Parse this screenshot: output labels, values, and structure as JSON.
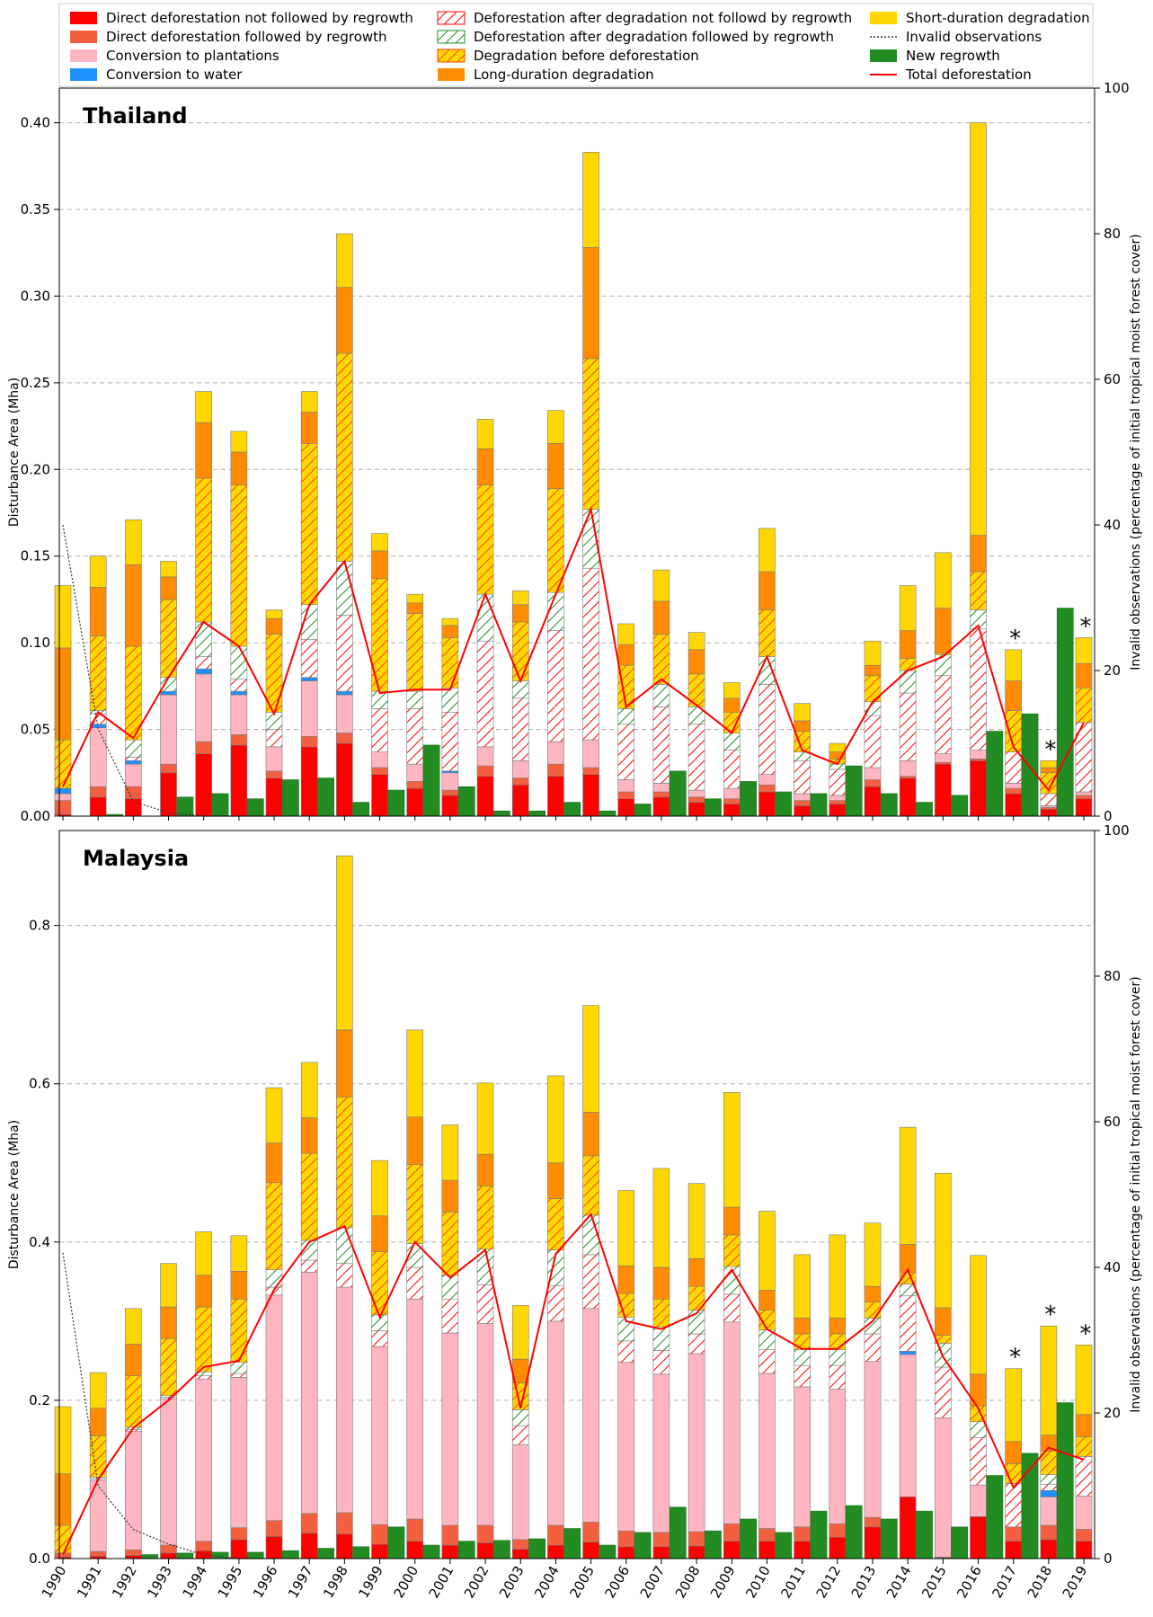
{
  "legend": [
    {
      "key": "dnr",
      "label": "Direct deforestation not followed by regrowth",
      "style": "solid",
      "color": "#ff0000"
    },
    {
      "key": "dr",
      "label": "Direct deforestation followed by regrowth",
      "style": "solid",
      "color": "#f4603f"
    },
    {
      "key": "pl",
      "label": "Conversion to plantations",
      "style": "solid",
      "color": "#ffb6c1"
    },
    {
      "key": "wa",
      "label": "Conversion to water",
      "style": "solid",
      "color": "#1e90ff"
    },
    {
      "key": "adnr",
      "label": "Deforestation after degradation not followd by regrowth",
      "style": "hatch",
      "color": "#ff0000",
      "bg": "#ffffff"
    },
    {
      "key": "adr",
      "label": "Deforestation after degradation followed by regrowth",
      "style": "hatch",
      "color": "#228b22",
      "bg": "#ffffff"
    },
    {
      "key": "dbd",
      "label": "Degradation before deforestation",
      "style": "hatch",
      "color": "#ff4500",
      "bg": "#ffd700"
    },
    {
      "key": "ld",
      "label": "Long-duration degradation",
      "style": "solid",
      "color": "#ff8c00"
    },
    {
      "key": "sd",
      "label": "Short-duration degradation",
      "style": "solid",
      "color": "#ffd700"
    },
    {
      "key": "inv",
      "label": "Invalid observations",
      "style": "dotted",
      "color": "#333333"
    },
    {
      "key": "nr",
      "label": "New regrowth",
      "style": "solid",
      "color": "#228b22"
    },
    {
      "key": "td",
      "label": "Total deforestation",
      "style": "line",
      "color": "#ff0000"
    }
  ],
  "years": [
    "1990",
    "1991",
    "1992",
    "1993",
    "1994",
    "1995",
    "1996",
    "1997",
    "1998",
    "1999",
    "2000",
    "2001",
    "2002",
    "2003",
    "2004",
    "2005",
    "2006",
    "2007",
    "2008",
    "2009",
    "2010",
    "2011",
    "2012",
    "2013",
    "2014",
    "2015",
    "2016",
    "2017",
    "2018",
    "2019"
  ],
  "chart_data": [
    {
      "type": "bar",
      "title": "Thailand",
      "ylabel": "Disturbance Area (Mha)",
      "y2label": "Invalid observations (percentage of initial tropical moist forest cover)",
      "ylim": [
        0,
        0.42
      ],
      "y2lim": [
        0,
        100
      ],
      "yticks": [
        "0.00",
        "0.05",
        "0.10",
        "0.15",
        "0.20",
        "0.25",
        "0.30",
        "0.35",
        "0.40"
      ],
      "y2ticks": [
        "0",
        "20",
        "40",
        "60",
        "80",
        "100"
      ],
      "asterisk_years": [
        "2017",
        "2018",
        "2019"
      ],
      "series": [
        {
          "key": "dnr",
          "name": "Direct deforestation not followed by regrowth",
          "values": [
            0.001,
            0.011,
            0.01,
            0.025,
            0.036,
            0.041,
            0.022,
            0.04,
            0.042,
            0.024,
            0.016,
            0.012,
            0.023,
            0.018,
            0.023,
            0.024,
            0.01,
            0.011,
            0.008,
            0.007,
            0.014,
            0.006,
            0.007,
            0.017,
            0.022,
            0.03,
            0.032,
            0.013,
            0.004,
            0.01
          ]
        },
        {
          "key": "dr",
          "name": "Direct deforestation followed by regrowth",
          "values": [
            0.008,
            0.006,
            0.007,
            0.005,
            0.007,
            0.006,
            0.004,
            0.006,
            0.006,
            0.004,
            0.004,
            0.003,
            0.006,
            0.004,
            0.007,
            0.004,
            0.004,
            0.003,
            0.003,
            0.003,
            0.004,
            0.003,
            0.002,
            0.004,
            0.001,
            0.001,
            0.001,
            0.003,
            0.001,
            0.002
          ]
        },
        {
          "key": "pl",
          "name": "Conversion to plantations",
          "values": [
            0.004,
            0.034,
            0.013,
            0.04,
            0.039,
            0.023,
            0.014,
            0.032,
            0.022,
            0.009,
            0.01,
            0.01,
            0.011,
            0.01,
            0.013,
            0.016,
            0.007,
            0.005,
            0.004,
            0.006,
            0.006,
            0.004,
            0.003,
            0.007,
            0.009,
            0.005,
            0.005,
            0.003,
            0.001,
            0.002
          ]
        },
        {
          "key": "wa",
          "name": "Conversion to water",
          "values": [
            0.003,
            0.002,
            0.002,
            0.002,
            0.003,
            0.002,
            0.0,
            0.002,
            0.002,
            0.0,
            0.0,
            0.001,
            0.0,
            0.0,
            0.0,
            0.0,
            0.0,
            0.0,
            0.0,
            0.0,
            0.0,
            0.0,
            0.0,
            0.0,
            0.0,
            0.0,
            0.0,
            0.0,
            0.0,
            0.0
          ]
        },
        {
          "key": "adnr",
          "name": "Deforestation after degradation not followd by regrowth",
          "values": [
            0.0,
            0.006,
            0.002,
            0.0,
            0.007,
            0.007,
            0.01,
            0.022,
            0.044,
            0.025,
            0.032,
            0.034,
            0.061,
            0.036,
            0.064,
            0.099,
            0.032,
            0.044,
            0.038,
            0.022,
            0.052,
            0.019,
            0.015,
            0.03,
            0.039,
            0.045,
            0.07,
            0.018,
            0.007,
            0.04
          ]
        },
        {
          "key": "adr",
          "name": "Deforestation after degradation followed by regrowth",
          "values": [
            0.0,
            0.002,
            0.01,
            0.008,
            0.02,
            0.019,
            0.01,
            0.02,
            0.031,
            0.01,
            0.01,
            0.014,
            0.027,
            0.01,
            0.022,
            0.034,
            0.009,
            0.013,
            0.01,
            0.01,
            0.016,
            0.005,
            0.003,
            0.008,
            0.013,
            0.012,
            0.011,
            0.0,
            0.0,
            0.0
          ]
        },
        {
          "key": "dbd",
          "name": "Degradation before deforestation",
          "values": [
            0.028,
            0.043,
            0.054,
            0.045,
            0.083,
            0.093,
            0.045,
            0.093,
            0.12,
            0.065,
            0.045,
            0.029,
            0.063,
            0.034,
            0.06,
            0.087,
            0.025,
            0.029,
            0.019,
            0.012,
            0.027,
            0.012,
            0.003,
            0.015,
            0.007,
            0.001,
            0.022,
            0.024,
            0.012,
            0.02
          ]
        },
        {
          "key": "ld",
          "name": "Long-duration degradation",
          "values": [
            0.053,
            0.028,
            0.047,
            0.013,
            0.032,
            0.019,
            0.009,
            0.018,
            0.038,
            0.016,
            0.006,
            0.007,
            0.021,
            0.01,
            0.026,
            0.064,
            0.012,
            0.019,
            0.014,
            0.008,
            0.022,
            0.006,
            0.004,
            0.006,
            0.016,
            0.026,
            0.021,
            0.017,
            0.003,
            0.014
          ]
        },
        {
          "key": "sd",
          "name": "Short-duration degradation",
          "values": [
            0.036,
            0.018,
            0.026,
            0.009,
            0.018,
            0.012,
            0.005,
            0.012,
            0.031,
            0.01,
            0.005,
            0.004,
            0.017,
            0.008,
            0.019,
            0.055,
            0.012,
            0.018,
            0.01,
            0.009,
            0.025,
            0.01,
            0.005,
            0.014,
            0.026,
            0.032,
            0.238,
            0.018,
            0.004,
            0.015
          ]
        },
        {
          "key": "nr",
          "name": "New regrowth",
          "values": [
            0.0,
            0.001,
            0.0,
            0.011,
            0.013,
            0.01,
            0.021,
            0.022,
            0.008,
            0.015,
            0.041,
            0.017,
            0.003,
            0.003,
            0.008,
            0.003,
            0.007,
            0.026,
            0.01,
            0.02,
            0.014,
            0.013,
            0.029,
            0.013,
            0.008,
            0.012,
            0.049,
            0.059,
            0.12,
            0.0
          ]
        },
        {
          "key": "td",
          "name": "Total deforestation",
          "values": [
            0.017,
            0.06,
            0.045,
            0.08,
            0.112,
            0.098,
            0.059,
            0.122,
            0.147,
            0.071,
            0.073,
            0.073,
            0.128,
            0.078,
            0.128,
            0.177,
            0.063,
            0.079,
            0.064,
            0.048,
            0.092,
            0.038,
            0.03,
            0.066,
            0.084,
            0.092,
            0.11,
            0.04,
            0.015,
            0.054
          ]
        },
        {
          "key": "inv",
          "name": "Invalid observations",
          "values": [
            40,
            12,
            2,
            0.5,
            0,
            0,
            0,
            0,
            0,
            0,
            0,
            0,
            0,
            0,
            0,
            0,
            0,
            0,
            0,
            0,
            0,
            0,
            0,
            0,
            0,
            0,
            0,
            0,
            0,
            0
          ]
        }
      ]
    },
    {
      "type": "bar",
      "title": "Malaysia",
      "ylabel": "Disturbance Area (Mha)",
      "y2label": "Invalid observations (percentage of initial tropical moist forest cover)",
      "ylim": [
        0,
        0.92
      ],
      "y2lim": [
        0,
        100
      ],
      "yticks": [
        "0.0",
        "0.2",
        "0.4",
        "0.6",
        "0.8"
      ],
      "y2ticks": [
        "0",
        "20",
        "40",
        "60",
        "80",
        "100"
      ],
      "asterisk_years": [
        "2017",
        "2018",
        "2019"
      ],
      "series": [
        {
          "key": "dnr",
          "name": "Direct deforestation not followed by regrowth",
          "values": [
            0.002,
            0.003,
            0.004,
            0.007,
            0.01,
            0.024,
            0.028,
            0.032,
            0.031,
            0.018,
            0.022,
            0.017,
            0.02,
            0.012,
            0.017,
            0.021,
            0.015,
            0.015,
            0.016,
            0.022,
            0.022,
            0.022,
            0.027,
            0.04,
            0.078,
            0.001,
            0.053,
            0.022,
            0.024,
            0.022
          ]
        },
        {
          "key": "dr",
          "name": "Direct deforestation followed by regrowth",
          "values": [
            0.005,
            0.006,
            0.007,
            0.01,
            0.012,
            0.015,
            0.02,
            0.025,
            0.027,
            0.025,
            0.028,
            0.025,
            0.022,
            0.012,
            0.025,
            0.025,
            0.02,
            0.018,
            0.018,
            0.022,
            0.016,
            0.018,
            0.017,
            0.012,
            0.0,
            0.001,
            0.0,
            0.018,
            0.018,
            0.015
          ]
        },
        {
          "key": "pl",
          "name": "Conversion to plantations",
          "values": [
            0.0,
            0.09,
            0.15,
            0.185,
            0.205,
            0.19,
            0.285,
            0.305,
            0.285,
            0.225,
            0.278,
            0.243,
            0.255,
            0.12,
            0.258,
            0.27,
            0.213,
            0.2,
            0.225,
            0.255,
            0.196,
            0.177,
            0.17,
            0.197,
            0.18,
            0.176,
            0.04,
            0.0,
            0.036,
            0.042
          ]
        },
        {
          "key": "wa",
          "name": "Conversion to water",
          "values": [
            0.0,
            0.0,
            0.0,
            0.0,
            0.0,
            0.0,
            0.0,
            0.0,
            0.0,
            0.0,
            0.0,
            0.0,
            0.0,
            0.0,
            0.0,
            0.0,
            0.0,
            0.0,
            0.0,
            0.0,
            0.0,
            0.0,
            0.0,
            0.0,
            0.004,
            0.0,
            0.0,
            0.0,
            0.008,
            0.0
          ]
        },
        {
          "key": "adnr",
          "name": "Deforestation after degradation not followd by regrowth",
          "values": [
            0.0,
            0.002,
            0.002,
            0.002,
            0.004,
            0.005,
            0.01,
            0.015,
            0.03,
            0.02,
            0.04,
            0.043,
            0.049,
            0.024,
            0.045,
            0.068,
            0.027,
            0.03,
            0.025,
            0.035,
            0.03,
            0.027,
            0.03,
            0.035,
            0.07,
            0.064,
            0.06,
            0.055,
            0.008,
            0.05
          ]
        },
        {
          "key": "adr",
          "name": "Deforestation after degradation followed by regrowth",
          "values": [
            0.0,
            0.002,
            0.003,
            0.002,
            0.005,
            0.014,
            0.022,
            0.025,
            0.045,
            0.02,
            0.03,
            0.03,
            0.045,
            0.02,
            0.045,
            0.05,
            0.03,
            0.03,
            0.03,
            0.035,
            0.025,
            0.02,
            0.02,
            0.02,
            0.015,
            0.03,
            0.02,
            0.0,
            0.012,
            0.0
          ]
        },
        {
          "key": "dbd",
          "name": "Degradation before deforestation",
          "values": [
            0.035,
            0.052,
            0.065,
            0.072,
            0.082,
            0.08,
            0.11,
            0.11,
            0.165,
            0.08,
            0.1,
            0.08,
            0.08,
            0.034,
            0.065,
            0.075,
            0.03,
            0.035,
            0.03,
            0.04,
            0.025,
            0.02,
            0.02,
            0.02,
            0.015,
            0.01,
            0.02,
            0.025,
            0.03,
            0.025
          ]
        },
        {
          "key": "ld",
          "name": "Long-duration degradation",
          "values": [
            0.065,
            0.035,
            0.04,
            0.04,
            0.04,
            0.035,
            0.05,
            0.045,
            0.085,
            0.045,
            0.06,
            0.04,
            0.04,
            0.03,
            0.045,
            0.055,
            0.035,
            0.04,
            0.035,
            0.035,
            0.025,
            0.02,
            0.02,
            0.02,
            0.035,
            0.035,
            0.04,
            0.028,
            0.02,
            0.028
          ]
        },
        {
          "key": "sd",
          "name": "Short-duration degradation",
          "values": [
            0.085,
            0.045,
            0.045,
            0.055,
            0.055,
            0.045,
            0.07,
            0.07,
            0.22,
            0.07,
            0.11,
            0.07,
            0.09,
            0.068,
            0.11,
            0.135,
            0.095,
            0.125,
            0.095,
            0.145,
            0.1,
            0.08,
            0.105,
            0.08,
            0.148,
            0.17,
            0.15,
            0.092,
            0.138,
            0.088
          ]
        },
        {
          "key": "nr",
          "name": "New regrowth",
          "values": [
            0.0,
            0.0,
            0.005,
            0.007,
            0.008,
            0.008,
            0.01,
            0.013,
            0.015,
            0.04,
            0.017,
            0.022,
            0.023,
            0.025,
            0.038,
            0.017,
            0.033,
            0.065,
            0.035,
            0.05,
            0.033,
            0.06,
            0.067,
            0.05,
            0.06,
            0.04,
            0.105,
            0.133,
            0.197,
            0.0
          ]
        },
        {
          "key": "td",
          "name": "Total deforestation",
          "values": [
            0.005,
            0.1,
            0.165,
            0.2,
            0.242,
            0.25,
            0.34,
            0.4,
            0.42,
            0.305,
            0.4,
            0.355,
            0.39,
            0.19,
            0.385,
            0.435,
            0.3,
            0.29,
            0.31,
            0.365,
            0.29,
            0.265,
            0.265,
            0.3,
            0.365,
            0.255,
            0.19,
            0.09,
            0.14,
            0.125
          ]
        },
        {
          "key": "inv",
          "name": "Invalid observations",
          "values": [
            42,
            10,
            4,
            2,
            0.5,
            0,
            0,
            0,
            0,
            0,
            0,
            0,
            0,
            0,
            0,
            0,
            0,
            0,
            0,
            0,
            0,
            0,
            0,
            0,
            0,
            0,
            0,
            0,
            0,
            0
          ]
        }
      ]
    }
  ]
}
